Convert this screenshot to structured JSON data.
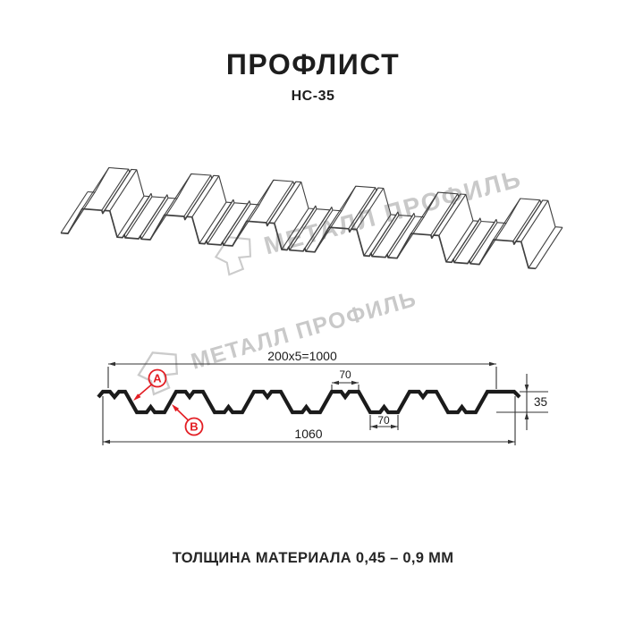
{
  "header": {
    "title": "ПРОФЛИСТ",
    "subtitle": "НС-35"
  },
  "watermark": {
    "text": "МЕТАЛЛ ПРОФИЛЬ"
  },
  "section": {
    "dim_working": "200x5=1000",
    "dim_top_flange": "70",
    "dim_bottom_flange": "70",
    "dim_height": "35",
    "dim_overall": "1060",
    "label_a": "A",
    "label_b": "B"
  },
  "footer": {
    "note": "ТОЛЩИНА МАТЕРИАЛА 0,45 – 0,9 ММ"
  },
  "colors": {
    "accent_red": "#e31e24",
    "profile_line": "#1b1b1b",
    "iso_line": "#404040",
    "dim_line": "#333333",
    "watermark_gray": "#c9c9c9"
  }
}
